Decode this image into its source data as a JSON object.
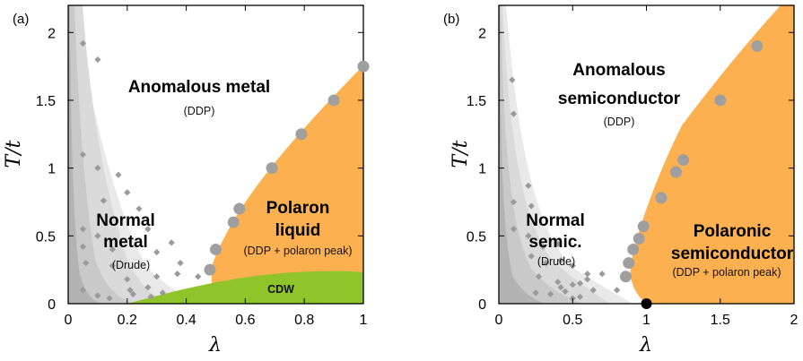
{
  "chart_data": [
    {
      "type": "scatter",
      "panel_label": "(a)",
      "xlabel": "λ",
      "ylabel": "T/t",
      "xlim": [
        0,
        1
      ],
      "ylim": [
        0,
        2.2
      ],
      "xticks": [
        "0",
        "0.2",
        "0.4",
        "0.6",
        "0.8",
        "1"
      ],
      "yticks": [
        "0",
        "0.5",
        "1",
        "1.5",
        "2"
      ],
      "regions": [
        {
          "bold": [
            "Anomalous metal"
          ],
          "sub": "(DDP)",
          "color": "#ffffff"
        },
        {
          "bold": [
            "Normal",
            "metal"
          ],
          "sub": "(Drude)",
          "color": "#d0d0d0"
        },
        {
          "bold": [
            "Polaron",
            "liquid"
          ],
          "sub": "(DDP + polaron peak)",
          "color": "#fcb04f"
        },
        {
          "bold": [
            "CDW"
          ],
          "sub": "",
          "color": "#8fc42a"
        }
      ],
      "circles": {
        "x": [
          0.48,
          0.5,
          0.56,
          0.58,
          0.69,
          0.79,
          0.9,
          1.0
        ],
        "y": [
          0.25,
          0.4,
          0.6,
          0.7,
          1.0,
          1.25,
          1.5,
          1.75
        ]
      },
      "diamonds": {
        "x": [
          0.05,
          0.1,
          0.05,
          0.1,
          0.05,
          0.1,
          0.17,
          0.2,
          0.12,
          0.24,
          0.05,
          0.15,
          0.27,
          0.35,
          0.06,
          0.15,
          0.3,
          0.38,
          0.05,
          0.2,
          0.27,
          0.32,
          0.1,
          0.22,
          0.3,
          0.37,
          0.44,
          0.14,
          0.21,
          0.28
        ],
        "y": [
          1.92,
          1.8,
          1.1,
          1.0,
          0.55,
          0.5,
          0.95,
          0.82,
          0.76,
          0.7,
          0.42,
          0.4,
          0.55,
          0.45,
          0.3,
          0.28,
          0.38,
          0.3,
          0.1,
          0.18,
          0.12,
          0.08,
          0.06,
          0.07,
          0.2,
          0.22,
          0.2,
          0.04,
          0.1,
          0.05
        ]
      }
    },
    {
      "type": "scatter",
      "panel_label": "(b)",
      "xlabel": "λ",
      "ylabel": "T/t",
      "xlim": [
        0,
        2
      ],
      "ylim": [
        0,
        2.2
      ],
      "xticks": [
        "0",
        "0.5",
        "1",
        "1.5",
        "2"
      ],
      "yticks": [
        "0",
        "0.5",
        "1",
        "1.5",
        "2"
      ],
      "regions": [
        {
          "bold": [
            "Anomalous",
            "semiconductor"
          ],
          "sub": "(DDP)",
          "color": "#ffffff"
        },
        {
          "bold": [
            "Normal",
            "semic."
          ],
          "sub": "(Drude)",
          "color": "#d0d0d0"
        },
        {
          "bold": [
            "Polaronic",
            "semiconductor"
          ],
          "sub": "(DDP + polaron peak)",
          "color": "#fcb04f"
        }
      ],
      "circles": {
        "x": [
          0.86,
          0.88,
          0.91,
          0.95,
          0.98,
          1.1,
          1.2,
          1.25,
          1.5,
          1.75
        ],
        "y": [
          0.2,
          0.3,
          0.4,
          0.48,
          0.57,
          0.78,
          0.97,
          1.06,
          1.5,
          1.9
        ]
      },
      "diamonds": {
        "x": [
          0.09,
          0.1,
          0.2,
          0.1,
          0.22,
          0.1,
          0.2,
          0.3,
          0.4,
          0.22,
          0.32,
          0.42,
          0.5,
          0.6,
          0.27,
          0.4,
          0.5,
          0.6,
          0.7,
          0.8,
          0.25,
          0.35,
          0.45,
          0.55,
          0.64,
          0.5,
          0.42,
          0.55
        ],
        "y": [
          1.65,
          1.4,
          0.87,
          0.75,
          0.72,
          0.55,
          0.5,
          0.42,
          0.44,
          0.35,
          0.3,
          0.32,
          0.28,
          0.22,
          0.2,
          0.16,
          0.14,
          0.18,
          0.22,
          0.1,
          0.08,
          0.07,
          0.09,
          0.05,
          0.1,
          0.04,
          0.12,
          0.15
        ]
      },
      "marker": {
        "x": 1.0,
        "y": 0.0
      }
    }
  ]
}
